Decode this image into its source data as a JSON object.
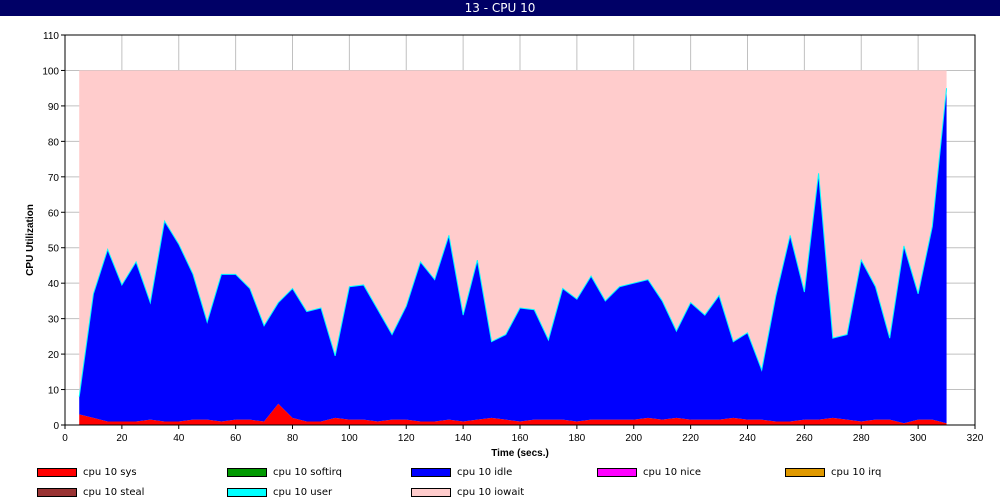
{
  "window": {
    "title": "13 - CPU 10"
  },
  "chart_data": {
    "type": "area",
    "stacked": true,
    "title": "13 - CPU 10",
    "xlabel": "Time (secs.)",
    "ylabel": "CPU Utilization",
    "xlim": [
      0,
      320
    ],
    "ylim": [
      0,
      110
    ],
    "xticks": [
      0,
      20,
      40,
      60,
      80,
      100,
      120,
      140,
      160,
      180,
      200,
      220,
      240,
      260,
      280,
      300,
      320
    ],
    "yticks": [
      0,
      10,
      20,
      30,
      40,
      50,
      60,
      70,
      80,
      90,
      100,
      110
    ],
    "grid": true,
    "legend_position": "bottom",
    "x": [
      5,
      10,
      15,
      20,
      25,
      30,
      35,
      40,
      45,
      50,
      55,
      60,
      65,
      70,
      75,
      80,
      85,
      90,
      95,
      100,
      105,
      110,
      115,
      120,
      125,
      130,
      135,
      140,
      145,
      150,
      155,
      160,
      165,
      170,
      175,
      180,
      185,
      190,
      195,
      200,
      205,
      210,
      215,
      220,
      225,
      230,
      235,
      240,
      245,
      250,
      255,
      260,
      265,
      270,
      275,
      280,
      285,
      290,
      295,
      300,
      305,
      310
    ],
    "series": [
      {
        "name": "cpu 10 sys",
        "color": "#ff0000",
        "values": [
          3,
          2,
          1,
          1,
          1,
          1.5,
          1,
          1,
          1.5,
          1.5,
          1,
          1.5,
          1.5,
          1,
          6,
          2,
          1,
          1,
          2,
          1.5,
          1.5,
          1,
          1.5,
          1.5,
          1,
          1,
          1.5,
          1,
          1.5,
          2,
          1.5,
          1,
          1.5,
          1.5,
          1.5,
          1,
          1.5,
          1.5,
          1.5,
          1.5,
          2,
          1.5,
          2,
          1.5,
          1.5,
          1.5,
          2,
          1.5,
          1.5,
          1,
          1,
          1.5,
          1.5,
          2,
          1.5,
          1,
          1.5,
          1.5,
          0.5,
          1.5,
          1.5,
          0.5
        ]
      },
      {
        "name": "cpu 10 softirq",
        "color": "#009900",
        "values": [
          0,
          0,
          0,
          0,
          0,
          0,
          0,
          0,
          0,
          0,
          0,
          0,
          0,
          0,
          0,
          0,
          0,
          0,
          0,
          0,
          0,
          0,
          0,
          0,
          0,
          0,
          0,
          0,
          0,
          0,
          0,
          0,
          0,
          0,
          0,
          0,
          0,
          0,
          0,
          0,
          0,
          0,
          0,
          0,
          0,
          0,
          0,
          0,
          0,
          0,
          0,
          0,
          0,
          0,
          0,
          0,
          0,
          0,
          0,
          0,
          0,
          0
        ]
      },
      {
        "name": "cpu 10 idle",
        "color": "#0000ff",
        "values": [
          5,
          35,
          48.5,
          38.5,
          45,
          33,
          56.5,
          50,
          41,
          27.5,
          41.5,
          41,
          37,
          27,
          28.5,
          36.5,
          31,
          32,
          17.5,
          37.5,
          38,
          31.5,
          24,
          32,
          45,
          40,
          52,
          30,
          45,
          21.5,
          24,
          32,
          31,
          22.5,
          37,
          34.5,
          40.5,
          33.5,
          37.5,
          38.5,
          39,
          33.5,
          24.5,
          33,
          29.5,
          35,
          21.5,
          24.5,
          14,
          35.5,
          52.5,
          36,
          69.5,
          22.5,
          24,
          45.5,
          37.5,
          23,
          50,
          35.5,
          54.5,
          94.5
        ]
      },
      {
        "name": "cpu 10 nice",
        "color": "#ff00ff",
        "values": [
          0,
          0,
          0,
          0,
          0,
          0,
          0,
          0,
          0,
          0,
          0,
          0,
          0,
          0,
          0,
          0,
          0,
          0,
          0,
          0,
          0,
          0,
          0,
          0,
          0,
          0,
          0,
          0,
          0,
          0,
          0,
          0,
          0,
          0,
          0,
          0,
          0,
          0,
          0,
          0,
          0,
          0,
          0,
          0,
          0,
          0,
          0,
          0,
          0,
          0,
          0,
          0,
          0,
          0,
          0,
          0,
          0,
          0,
          0,
          0,
          0,
          0
        ]
      },
      {
        "name": "cpu 10 irq",
        "color": "#e09900",
        "values": [
          0,
          0,
          0,
          0,
          0,
          0,
          0,
          0,
          0,
          0,
          0,
          0,
          0,
          0,
          0,
          0,
          0,
          0,
          0,
          0,
          0,
          0,
          0,
          0,
          0,
          0,
          0,
          0,
          0,
          0,
          0,
          0,
          0,
          0,
          0,
          0,
          0,
          0,
          0,
          0,
          0,
          0,
          0,
          0,
          0,
          0,
          0,
          0,
          0,
          0,
          0,
          0,
          0,
          0,
          0,
          0,
          0,
          0,
          0,
          0,
          0,
          0
        ]
      },
      {
        "name": "cpu 10 steal",
        "color": "#993333",
        "values": [
          0,
          0,
          0,
          0,
          0,
          0,
          0,
          0,
          0,
          0,
          0,
          0,
          0,
          0,
          0,
          0,
          0,
          0,
          0,
          0,
          0,
          0,
          0,
          0,
          0,
          0,
          0,
          0,
          0,
          0,
          0,
          0,
          0,
          0,
          0,
          0,
          0,
          0,
          0,
          0,
          0,
          0,
          0,
          0,
          0,
          0,
          0,
          0,
          0,
          0,
          0,
          0,
          0,
          0,
          0,
          0,
          0,
          0,
          0,
          0,
          0,
          0
        ]
      },
      {
        "name": "cpu 10 user",
        "color": "#00ffff",
        "values": [
          0,
          0,
          0,
          0,
          0,
          0,
          0,
          0,
          0,
          0,
          0,
          0,
          0,
          0,
          0,
          0,
          0,
          0,
          0,
          0,
          0,
          0,
          0,
          0,
          0,
          0,
          0,
          0,
          0,
          0,
          0,
          0,
          0,
          0,
          0,
          0,
          0,
          0,
          0,
          0,
          0,
          0,
          0,
          0,
          0,
          0,
          0,
          0,
          0,
          0,
          0,
          0,
          0,
          0,
          0,
          0,
          0,
          0,
          0,
          0,
          0,
          0
        ]
      },
      {
        "name": "cpu 10 iowait",
        "color": "#ffcccc",
        "values": [
          92,
          63,
          50.5,
          60.5,
          54,
          65.5,
          42.5,
          49,
          57.5,
          71,
          57.5,
          57.5,
          61.5,
          72,
          65.5,
          61.5,
          68,
          67,
          80.5,
          61,
          60.5,
          67.5,
          74.5,
          66.5,
          54,
          59,
          46.5,
          69,
          53.5,
          76.5,
          74.5,
          67,
          67.5,
          76,
          61.5,
          64.5,
          58,
          65,
          61,
          60,
          59,
          65,
          73.5,
          65.5,
          69,
          63.5,
          76.5,
          74,
          84.5,
          63.5,
          46.5,
          62.5,
          29,
          75.5,
          74.5,
          53.5,
          61,
          75.5,
          49.5,
          63,
          44,
          5
        ]
      }
    ]
  }
}
